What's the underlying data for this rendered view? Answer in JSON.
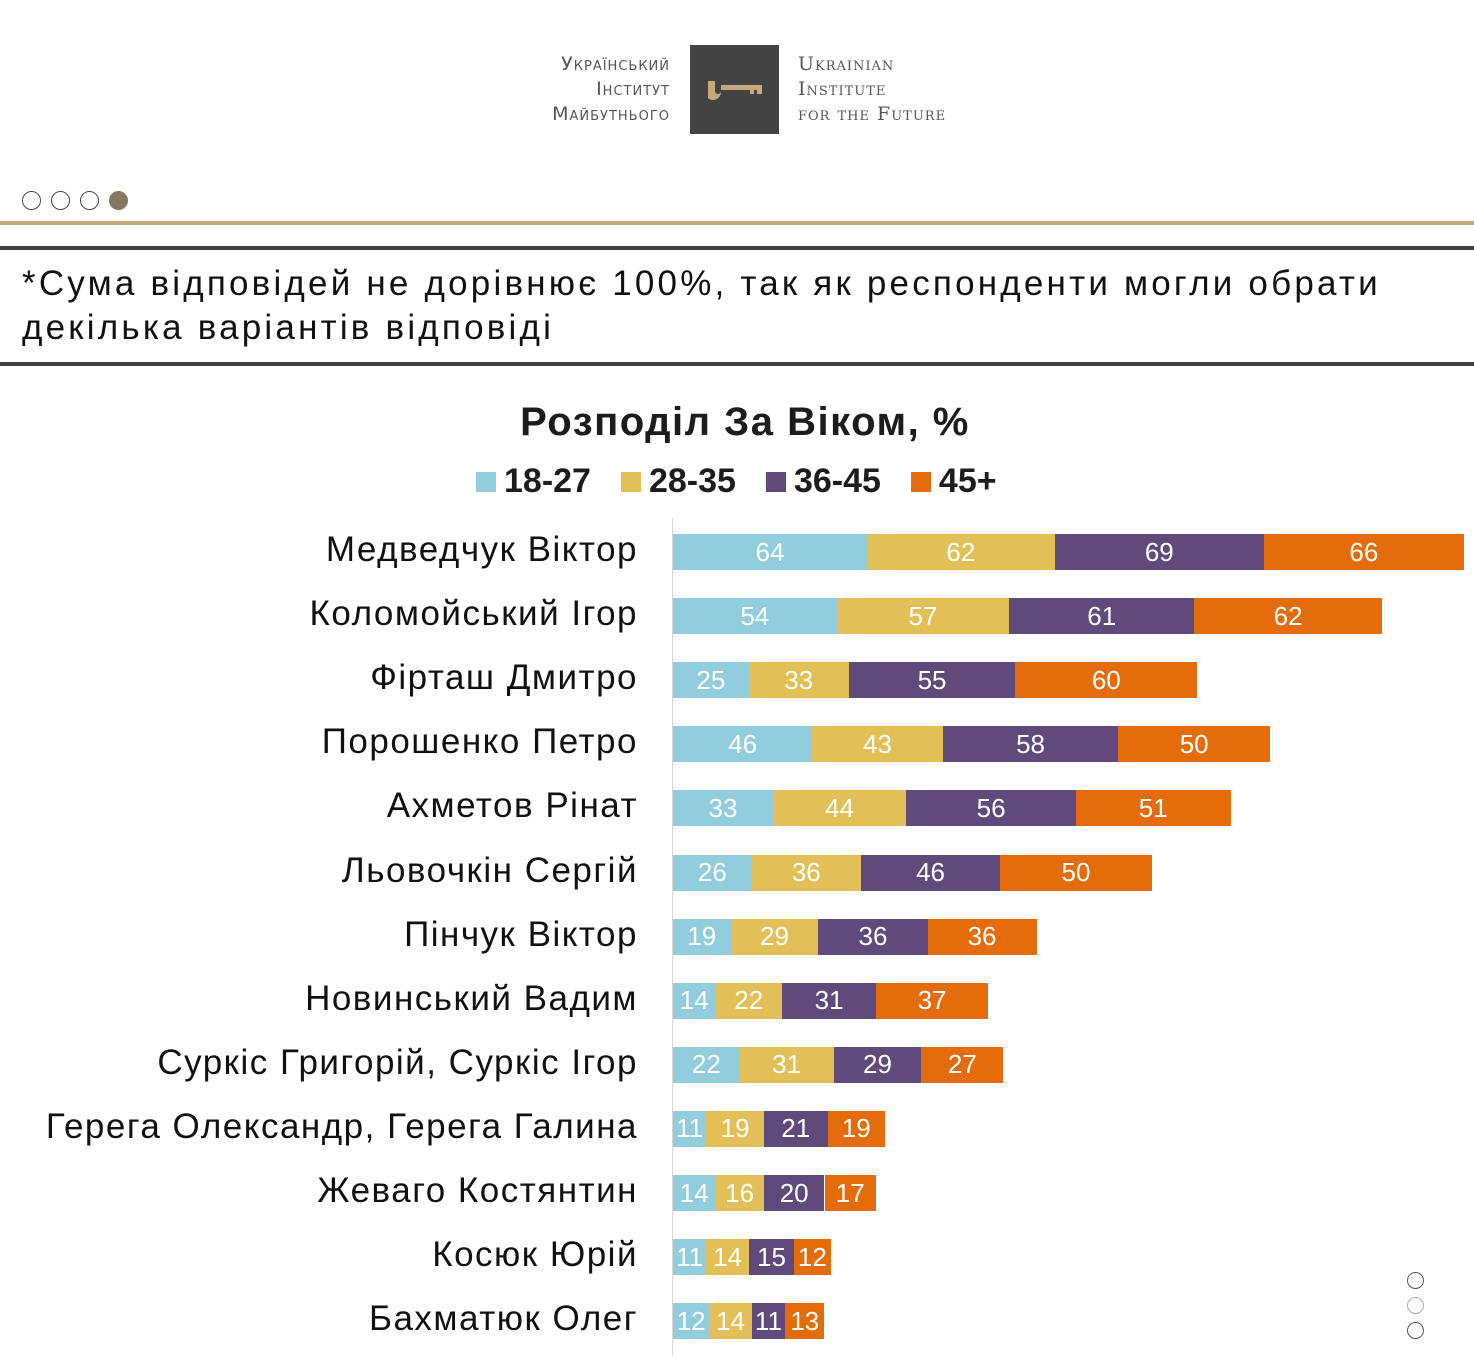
{
  "header": {
    "logo_ua_lines": [
      "Український",
      "Інститут",
      "Майбутнього"
    ],
    "logo_en_lines": [
      "Ukrainian",
      "Institute",
      "for the Future"
    ],
    "logo_icon": "key-icon",
    "brand_colors": {
      "gold": "#c4a97b",
      "dark": "#434343",
      "dot_active": "#857760"
    }
  },
  "pagination": {
    "total": 4,
    "active_index": 3
  },
  "side_pagination": {
    "total": 3
  },
  "note": "*Сума відповідей не дорівнює 100%, так як респонденти могли обрати декілька варіантів відповіді",
  "chart_data": {
    "type": "bar",
    "orientation": "horizontal",
    "stacked": true,
    "title": "Розподіл За Віком, %",
    "xlabel": "",
    "ylabel": "",
    "legend_position": "top",
    "grid": false,
    "categories": [
      "Медведчук Віктор",
      "Коломойський Ігор",
      "Фірташ Дмитро",
      "Порошенко Петро",
      "Ахметов Рінат",
      "Льовочкін Сергій",
      "Пінчук Віктор",
      "Новинський Вадим",
      "Суркіс Григорій, Суркіс Ігор",
      "Герега Олександр, Герега Галина",
      "Жеваго Костянтин",
      "Косюк Юрій",
      "Бахматюк Олег"
    ],
    "series": [
      {
        "name": "18-27",
        "color": "#92cddd",
        "values": [
          64,
          54,
          25,
          46,
          33,
          26,
          19,
          14,
          22,
          11,
          14,
          11,
          12
        ]
      },
      {
        "name": "28-35",
        "color": "#e3c057",
        "values": [
          62,
          57,
          33,
          43,
          44,
          36,
          29,
          22,
          31,
          19,
          16,
          14,
          14
        ]
      },
      {
        "name": "36-45",
        "color": "#604a7b",
        "values": [
          69,
          61,
          55,
          58,
          56,
          46,
          36,
          31,
          29,
          21,
          20,
          15,
          11
        ]
      },
      {
        "name": "45+",
        "color": "#e46c0a",
        "values": [
          66,
          62,
          60,
          50,
          51,
          50,
          36,
          37,
          27,
          19,
          17,
          12,
          13
        ]
      }
    ]
  }
}
